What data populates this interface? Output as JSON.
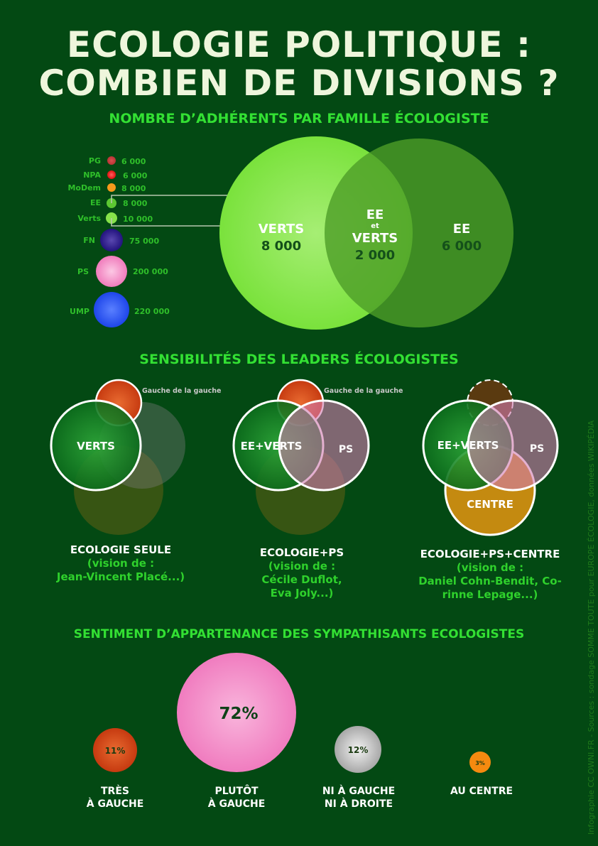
{
  "title": {
    "line1": "ECOLOGIE POLITIQUE :",
    "line2": "COMBIEN DE DIVISIONS ?"
  },
  "section1": {
    "heading": "NOMBRE D’ADHÉRENTS PAR FAMILLE ÉCOLOGISTE",
    "parties": [
      {
        "name": "PG",
        "members": "6 000",
        "color": "#c43c3c"
      },
      {
        "name": "NPA",
        "members": "6 000",
        "color": "#f01818"
      },
      {
        "name": "MoDem",
        "members": "8 000",
        "color": "#f79a1c"
      },
      {
        "name": "EE",
        "members": "8 000",
        "color": "#5cc832"
      },
      {
        "name": "Verts",
        "members": "10 000",
        "color": "#86e24a"
      },
      {
        "name": "FN",
        "members": "75 000",
        "color": "#2a1b8c"
      },
      {
        "name": "PS",
        "members": "200 000",
        "color": "#f590c8"
      },
      {
        "name": "UMP",
        "members": "220 000",
        "color": "#2450f0"
      }
    ],
    "venn": {
      "verts_label": "VERTS",
      "verts_value": "8 000",
      "both_label_1": "EE",
      "both_label_et": "et",
      "both_label_2": "VERTS",
      "both_value": "2 000",
      "ee_label": "EE",
      "ee_value": "6 000"
    }
  },
  "section2": {
    "heading": "SENSIBILITÉS DES LEADERS ÉCOLOGISTES",
    "diagrams": [
      {
        "main": "VERTS",
        "note": "Gauche de la gauche",
        "caption": "ECOLOGIE SEULE",
        "vision": "(vision de :",
        "names": "Jean-Vincent Placé...)"
      },
      {
        "main": "EE+VERTS",
        "ps": "PS",
        "note": "Gauche de la gauche",
        "caption": "ECOLOGIE+PS",
        "vision": "(vision de :",
        "names": "Cécile Duflot,",
        "names2": "Eva Joly...)"
      },
      {
        "main": "EE+VERTS",
        "ps": "PS",
        "centre": "CENTRE",
        "caption": "ECOLOGIE+PS+CENTRE",
        "vision": "(vision de :",
        "names": "Daniel Cohn-Bendit, Co-",
        "names2": "rinne Lepage...)"
      }
    ]
  },
  "section3": {
    "heading": "SENTIMENT D’APPARTENANCE DES SYMPATHISANTS ECOLOGISTES",
    "items": [
      {
        "value": "11%",
        "label": "TRÈS\nÀ GAUCHE",
        "color": "#d8481a"
      },
      {
        "value": "72%",
        "label": "PLUTÔT\nÀ GAUCHE",
        "color": "#f48fcb"
      },
      {
        "value": "12%",
        "label": "NI À GAUCHE\nNI À DROITE",
        "color": "#cfcfcf"
      },
      {
        "value": "3%",
        "label": "AU CENTRE",
        "color": "#f58a10"
      }
    ]
  },
  "credit": "Infographie CC OWNI.FR - Sources : sondage SOMME TOUTE pour EUROPE ÉCOLOGIE, données WIKIPÉDIA"
}
